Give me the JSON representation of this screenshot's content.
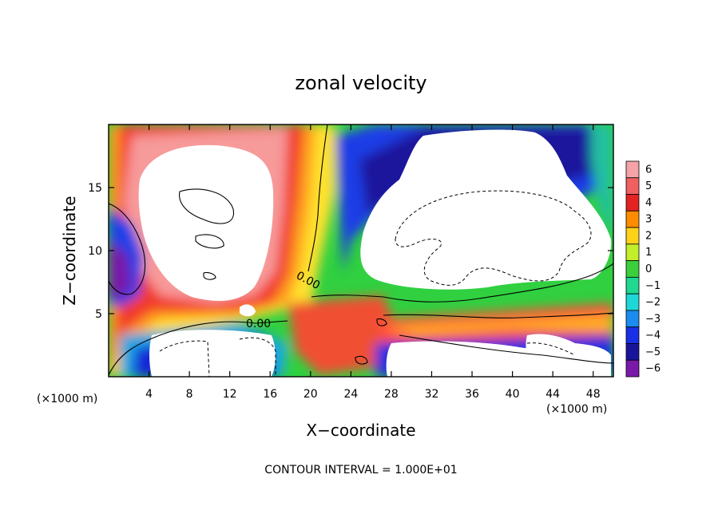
{
  "chart_data": {
    "type": "heatmap",
    "title": "zonal velocity",
    "xlabel": "X−coordinate",
    "ylabel": "Z−coordinate",
    "x_units_left": "(×1000 m)",
    "x_units_right": "(×1000 m)",
    "xlim": [
      0,
      50
    ],
    "ylim": [
      0,
      20
    ],
    "x_ticks": [
      4,
      8,
      12,
      16,
      20,
      24,
      28,
      32,
      36,
      40,
      44,
      48
    ],
    "x_tick_labels": [
      "4",
      "8",
      "12",
      "16",
      "20",
      "24",
      "28",
      "32",
      "36",
      "40",
      "44",
      "48"
    ],
    "y_ticks": [
      5,
      10,
      15
    ],
    "y_tick_labels": [
      "5",
      "10",
      "15"
    ],
    "colorbar": {
      "levels": [
        6,
        5,
        4,
        3,
        2,
        1,
        0,
        -1,
        -2,
        -3,
        -4,
        -5,
        -6
      ],
      "labels": [
        "6",
        "5",
        "4",
        "3",
        "2",
        "1",
        "0",
        "−1",
        "−2",
        "−3",
        "−4",
        "−5",
        "−6"
      ],
      "colors": [
        "#f5a3a8",
        "#f06060",
        "#e32222",
        "#ff8c00",
        "#ffd21a",
        "#c2ee2a",
        "#3ccf3c",
        "#20d890",
        "#1ed7d7",
        "#1a8cf0",
        "#1830e6",
        "#1a149c",
        "#7a19a9"
      ]
    },
    "contour_labels": [
      "0.00",
      "0.00"
    ],
    "footer": "CONTOUR INTERVAL = 1.000E+01"
  }
}
